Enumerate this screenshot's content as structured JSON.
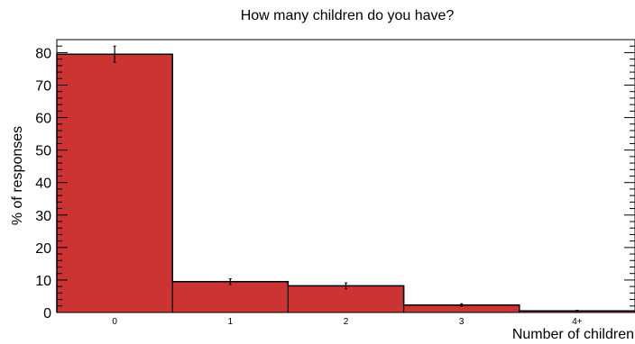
{
  "chart_data": {
    "type": "bar",
    "title": "How many children do you have?",
    "xlabel": "Number of children",
    "ylabel": "% of responses",
    "categories": [
      "0",
      "1",
      "2",
      "3",
      "4+"
    ],
    "values": [
      79.5,
      9.5,
      8.2,
      2.3,
      0.5
    ],
    "errors": [
      2.5,
      0.9,
      0.9,
      0.4,
      0.2
    ],
    "ylim": [
      0,
      84
    ],
    "yticks": [
      0,
      10,
      20,
      30,
      40,
      50,
      60,
      70,
      80
    ],
    "bar_color": "#cc3333",
    "edge_color": "#000000",
    "grid": false,
    "legend": "none"
  }
}
